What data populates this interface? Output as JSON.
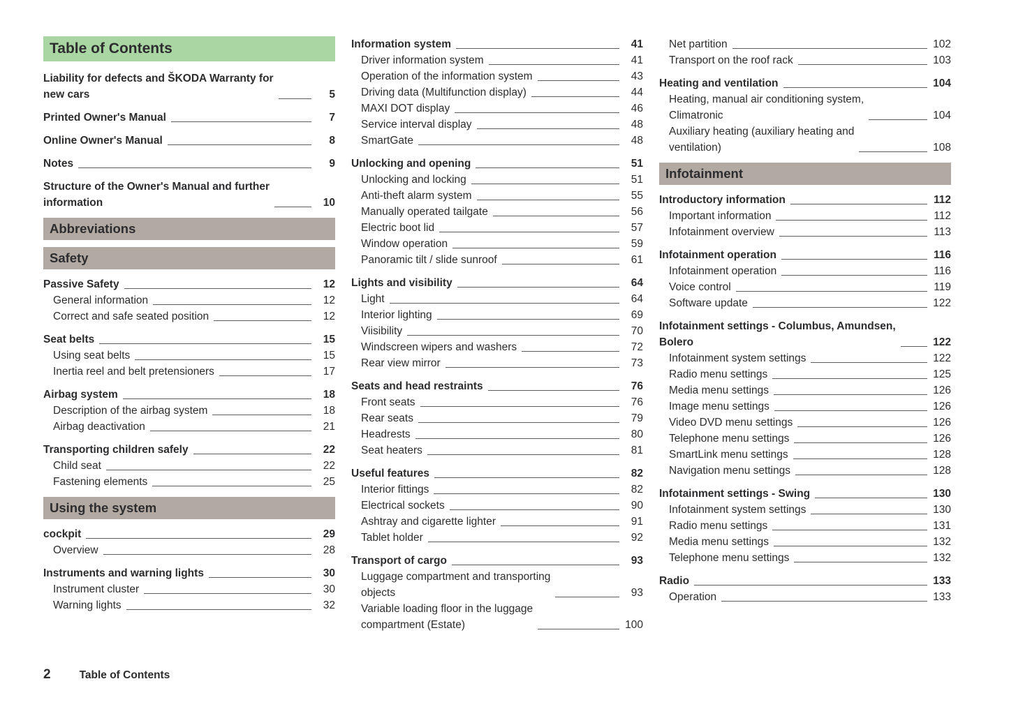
{
  "colors": {
    "green_bar": "#a9d6a2",
    "gray_bar": "#b2a9a3",
    "text": "#2d2d2f",
    "leader_line": "#5a5c5e"
  },
  "footer": {
    "page_number": "2",
    "label": "Table of Contents"
  },
  "columns": [
    {
      "blocks": [
        {
          "type": "green_header",
          "text": "Table of Contents"
        },
        {
          "type": "group",
          "entries": [
            {
              "label": "Liability for defects and ŠKODA Warranty for\nnew cars",
              "page": "5",
              "bold": true
            }
          ]
        },
        {
          "type": "group",
          "entries": [
            {
              "label": "Printed Owner's Manual",
              "page": "7",
              "bold": true
            }
          ]
        },
        {
          "type": "group",
          "entries": [
            {
              "label": "Online Owner's Manual",
              "page": "8",
              "bold": true
            }
          ]
        },
        {
          "type": "group",
          "entries": [
            {
              "label": "Notes",
              "page": "9",
              "bold": true
            }
          ]
        },
        {
          "type": "group",
          "entries": [
            {
              "label": "Structure of the Owner's Manual and further\ninformation",
              "page": "10",
              "bold": true
            }
          ]
        },
        {
          "type": "gray_header",
          "text": "Abbreviations"
        },
        {
          "type": "gray_header",
          "text": "Safety"
        },
        {
          "type": "group",
          "entries": [
            {
              "label": "Passive Safety",
              "page": "12",
              "bold": true
            },
            {
              "label": "General information",
              "page": "12",
              "indent": true
            },
            {
              "label": "Correct and safe seated position",
              "page": "12",
              "indent": true
            }
          ]
        },
        {
          "type": "group",
          "entries": [
            {
              "label": "Seat belts",
              "page": "15",
              "bold": true
            },
            {
              "label": "Using seat belts",
              "page": "15",
              "indent": true
            },
            {
              "label": "Inertia reel and belt pretensioners",
              "page": "17",
              "indent": true
            }
          ]
        },
        {
          "type": "group",
          "entries": [
            {
              "label": "Airbag system",
              "page": "18",
              "bold": true
            },
            {
              "label": "Description of the airbag system",
              "page": "18",
              "indent": true
            },
            {
              "label": "Airbag deactivation",
              "page": "21",
              "indent": true
            }
          ]
        },
        {
          "type": "group",
          "entries": [
            {
              "label": "Transporting children safely",
              "page": "22",
              "bold": true
            },
            {
              "label": "Child seat",
              "page": "22",
              "indent": true
            },
            {
              "label": "Fastening elements",
              "page": "25",
              "indent": true
            }
          ]
        },
        {
          "type": "gray_header",
          "text": "Using the system"
        },
        {
          "type": "group",
          "entries": [
            {
              "label": "cockpit",
              "page": "29",
              "bold": true
            },
            {
              "label": "Overview",
              "page": "28",
              "indent": true
            }
          ]
        },
        {
          "type": "group",
          "entries": [
            {
              "label": "Instruments and warning lights",
              "page": "30",
              "bold": true
            },
            {
              "label": "Instrument cluster",
              "page": "30",
              "indent": true
            },
            {
              "label": "Warning lights",
              "page": "32",
              "indent": true
            }
          ]
        }
      ]
    },
    {
      "blocks": [
        {
          "type": "group",
          "entries": [
            {
              "label": "Information system",
              "page": "41",
              "bold": true
            },
            {
              "label": "Driver information system",
              "page": "41",
              "indent": true
            },
            {
              "label": "Operation of the information system",
              "page": "43",
              "indent": true
            },
            {
              "label": "Driving data (Multifunction display)",
              "page": "44",
              "indent": true
            },
            {
              "label": "MAXI DOT display",
              "page": "46",
              "indent": true
            },
            {
              "label": "Service interval display",
              "page": "48",
              "indent": true
            },
            {
              "label": "SmartGate",
              "page": "48",
              "indent": true
            }
          ]
        },
        {
          "type": "group",
          "entries": [
            {
              "label": "Unlocking and opening",
              "page": "51",
              "bold": true
            },
            {
              "label": "Unlocking and locking",
              "page": "51",
              "indent": true
            },
            {
              "label": "Anti-theft alarm system",
              "page": "55",
              "indent": true
            },
            {
              "label": "Manually operated tailgate",
              "page": "56",
              "indent": true
            },
            {
              "label": "Electric boot lid",
              "page": "57",
              "indent": true
            },
            {
              "label": "Window operation",
              "page": "59",
              "indent": true
            },
            {
              "label": "Panoramic tilt / slide sunroof",
              "page": "61",
              "indent": true
            }
          ]
        },
        {
          "type": "group",
          "entries": [
            {
              "label": "Lights and visibility",
              "page": "64",
              "bold": true
            },
            {
              "label": "Light",
              "page": "64",
              "indent": true
            },
            {
              "label": "Interior lighting",
              "page": "69",
              "indent": true
            },
            {
              "label": "Viisibility",
              "page": "70",
              "indent": true
            },
            {
              "label": "Windscreen wipers and washers",
              "page": "72",
              "indent": true
            },
            {
              "label": "Rear view mirror",
              "page": "73",
              "indent": true
            }
          ]
        },
        {
          "type": "group",
          "entries": [
            {
              "label": "Seats and head restraints",
              "page": "76",
              "bold": true
            },
            {
              "label": "Front seats",
              "page": "76",
              "indent": true
            },
            {
              "label": "Rear seats",
              "page": "79",
              "indent": true
            },
            {
              "label": "Headrests",
              "page": "80",
              "indent": true
            },
            {
              "label": "Seat heaters",
              "page": "81",
              "indent": true
            }
          ]
        },
        {
          "type": "group",
          "entries": [
            {
              "label": "Useful features",
              "page": "82",
              "bold": true
            },
            {
              "label": "Interior fittings",
              "page": "82",
              "indent": true
            },
            {
              "label": "Electrical sockets",
              "page": "90",
              "indent": true
            },
            {
              "label": "Ashtray and cigarette lighter",
              "page": "91",
              "indent": true
            },
            {
              "label": "Tablet holder",
              "page": "92",
              "indent": true
            }
          ]
        },
        {
          "type": "group",
          "entries": [
            {
              "label": "Transport of cargo",
              "page": "93",
              "bold": true
            },
            {
              "label": "Luggage compartment and transporting\nobjects",
              "page": "93",
              "indent": true
            },
            {
              "label": "Variable loading floor in the luggage\ncompartment (Estate)",
              "page": "100",
              "indent": true
            }
          ]
        }
      ]
    },
    {
      "blocks": [
        {
          "type": "group",
          "entries": [
            {
              "label": "Net partition",
              "page": "102",
              "indent": true
            },
            {
              "label": "Transport on the roof rack",
              "page": "103",
              "indent": true
            }
          ]
        },
        {
          "type": "group",
          "entries": [
            {
              "label": "Heating and ventilation",
              "page": "104",
              "bold": true
            },
            {
              "label": "Heating, manual air conditioning system,\nClimatronic",
              "page": "104",
              "indent": true
            },
            {
              "label": "Auxiliary heating (auxiliary heating and\nventilation)",
              "page": "108",
              "indent": true
            }
          ]
        },
        {
          "type": "gray_header",
          "text": "Infotainment"
        },
        {
          "type": "group",
          "entries": [
            {
              "label": "Introductory information",
              "page": "112",
              "bold": true
            },
            {
              "label": "Important information",
              "page": "112",
              "indent": true
            },
            {
              "label": "Infotainment overview",
              "page": "113",
              "indent": true
            }
          ]
        },
        {
          "type": "group",
          "entries": [
            {
              "label": "Infotainment operation",
              "page": "116",
              "bold": true
            },
            {
              "label": "Infotainment operation",
              "page": "116",
              "indent": true
            },
            {
              "label": "Voice control",
              "page": "119",
              "indent": true
            },
            {
              "label": "Software update",
              "page": "122",
              "indent": true
            }
          ]
        },
        {
          "type": "group",
          "entries": [
            {
              "label": "Infotainment settings - Columbus, Amundsen,\nBolero",
              "page": "122",
              "bold": true
            },
            {
              "label": "Infotainment system settings",
              "page": "122",
              "indent": true
            },
            {
              "label": "Radio menu settings",
              "page": "125",
              "indent": true
            },
            {
              "label": "Media menu settings",
              "page": "126",
              "indent": true
            },
            {
              "label": "Image menu settings",
              "page": "126",
              "indent": true
            },
            {
              "label": "Video DVD menu settings",
              "page": "126",
              "indent": true
            },
            {
              "label": "Telephone menu settings",
              "page": "126",
              "indent": true
            },
            {
              "label": "SmartLink menu settings",
              "page": "128",
              "indent": true
            },
            {
              "label": "Navigation menu settings",
              "page": "128",
              "indent": true
            }
          ]
        },
        {
          "type": "group",
          "entries": [
            {
              "label": "Infotainment settings - Swing",
              "page": "130",
              "bold": true
            },
            {
              "label": "Infotainment system settings",
              "page": "130",
              "indent": true
            },
            {
              "label": "Radio menu settings",
              "page": "131",
              "indent": true
            },
            {
              "label": "Media menu settings",
              "page": "132",
              "indent": true
            },
            {
              "label": "Telephone menu settings",
              "page": "132",
              "indent": true
            }
          ]
        },
        {
          "type": "group",
          "entries": [
            {
              "label": "Radio",
              "page": "133",
              "bold": true
            },
            {
              "label": "Operation",
              "page": "133",
              "indent": true
            }
          ]
        }
      ]
    }
  ]
}
